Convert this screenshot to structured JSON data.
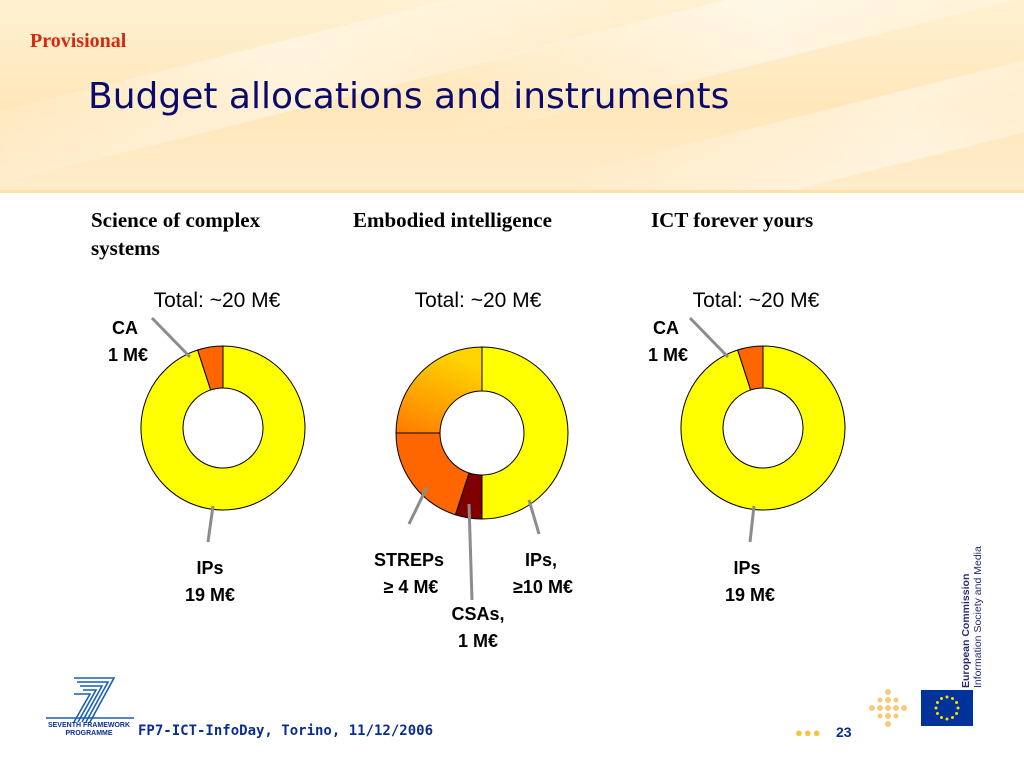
{
  "header": {
    "provisional": "Provisional",
    "title": "Budget allocations and instruments"
  },
  "columns": {
    "titles": [
      "Science of complex systems",
      "Embodied intelligence",
      "ICT forever yours"
    ]
  },
  "chart_data": [
    {
      "type": "pie",
      "title": "Science of complex systems",
      "total_label": "Total: ~20 M€",
      "total": 20,
      "unit": "M€",
      "slices": [
        {
          "name": "IPs",
          "value": 19,
          "value_label": "19 M€",
          "color": "#ffff00"
        },
        {
          "name": "CA",
          "value": 1,
          "value_label": "1 M€",
          "color": "#ff6600"
        }
      ]
    },
    {
      "type": "pie",
      "title": "Embodied intelligence",
      "total_label": "Total: ~20 M€",
      "total": 20,
      "unit": "M€",
      "slices": [
        {
          "name": "IPs,",
          "value": 10,
          "value_label": "≥10 M€",
          "color": "#ffff00"
        },
        {
          "name": "CSAs,",
          "value": 1,
          "value_label": "1 M€",
          "color": "#800000"
        },
        {
          "name": "STREPs",
          "value": 4,
          "value_label": "≥ 4 M€",
          "color": "#ff6600"
        },
        {
          "name": "",
          "value": 5,
          "value_label": "",
          "color": "#ffa000",
          "gradient": [
            "#ff7a00",
            "#ffd400"
          ]
        }
      ]
    },
    {
      "type": "pie",
      "title": "ICT forever yours",
      "total_label": "Total: ~20 M€",
      "total": 20,
      "unit": "M€",
      "slices": [
        {
          "name": "IPs",
          "value": 19,
          "value_label": "19 M€",
          "color": "#ffff00"
        },
        {
          "name": "CA",
          "value": 1,
          "value_label": "1 M€",
          "color": "#ff6600"
        }
      ]
    }
  ],
  "footer": {
    "event": "FP7-ICT-InfoDay, Torino, 11/12/2006",
    "page_number": "23",
    "commission": "European Commission",
    "directorate": "Information Society and Media",
    "programme_line1": "SEVENTH FRAMEWORK",
    "programme_line2": "PROGRAMME"
  },
  "colors": {
    "title": "#0a0a6e",
    "provisional": "#d42a12",
    "footer_text": "#0a2e8c",
    "eu_blue": "#003399",
    "eu_star": "#ffdd00"
  }
}
